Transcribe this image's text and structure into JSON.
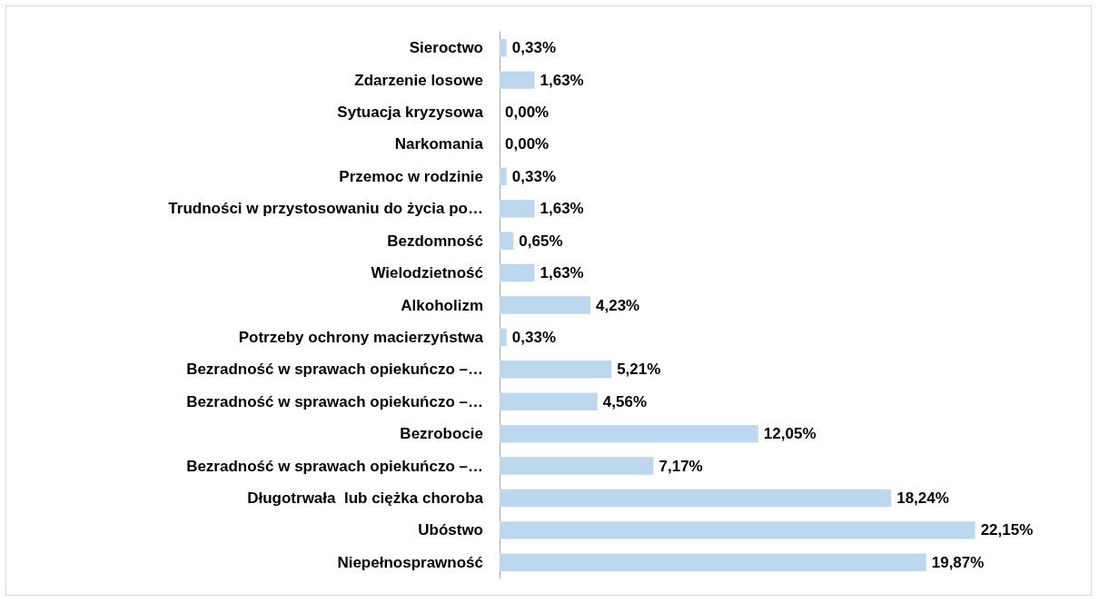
{
  "chart_data": {
    "type": "bar",
    "orientation": "horizontal",
    "categories": [
      "Sieroctwo",
      "Zdarzenie losowe",
      "Sytuacja kryzysowa",
      "Narkomania",
      "Przemoc w rodzinie",
      "Trudności w przystosowaniu do życia po…",
      "Bezdomność",
      "Wielodzietność",
      "Alkoholizm",
      "Potrzeby ochrony macierzyństwa",
      "Bezradność w sprawach opiekuńczo –…",
      "Bezradność w sprawach opiekuńczo –…",
      "Bezrobocie",
      "Bezradność w sprawach opiekuńczo –…",
      "Długotrwała  lub ciężka choroba",
      "Ubóstwo",
      "Niepełnosprawność"
    ],
    "values": [
      0.33,
      1.63,
      0.0,
      0.0,
      0.33,
      1.63,
      0.65,
      1.63,
      4.23,
      0.33,
      5.21,
      4.56,
      12.05,
      7.17,
      18.24,
      22.15,
      19.87
    ],
    "value_labels": [
      "0,33%",
      "1,63%",
      "0,00%",
      "0,00%",
      "0,33%",
      "1,63%",
      "0,65%",
      "1,63%",
      "4,23%",
      "0,33%",
      "5,21%",
      "4,56%",
      "12,05%",
      "7,17%",
      "18,24%",
      "22,15%",
      "19,87%"
    ],
    "color": "#bdd7ee"
  }
}
